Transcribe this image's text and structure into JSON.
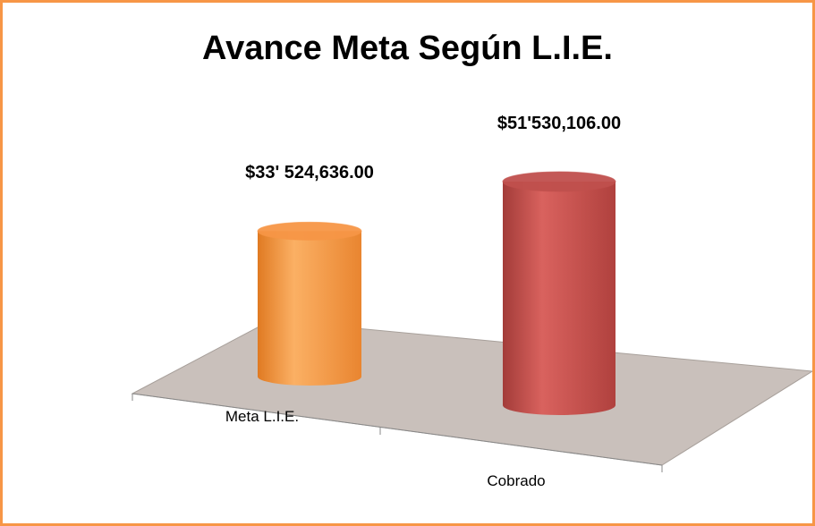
{
  "chart_data": {
    "type": "cylinder-bar",
    "title": "Avance Meta Según L.I.E.",
    "categories": [
      "Meta L.I.E.",
      "Cobrado"
    ],
    "values": [
      33524636,
      51530106
    ],
    "value_labels": [
      "$33' 524,636.00",
      "$51'530,106.00"
    ],
    "colors": [
      "#f79646",
      "#c0504d"
    ]
  }
}
